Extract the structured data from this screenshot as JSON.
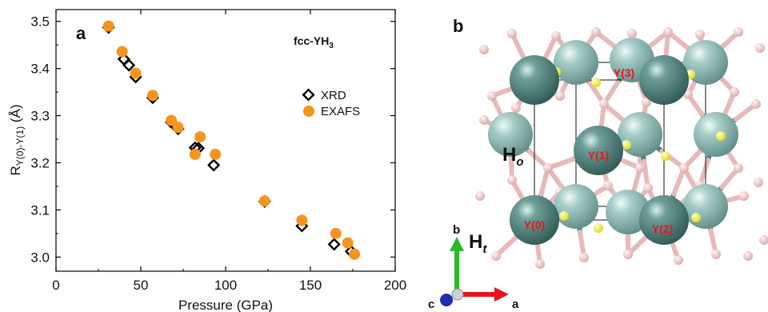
{
  "panels": {
    "a_label": "a",
    "b_label": "b"
  },
  "chart_data": {
    "type": "scatter",
    "title": "fcc-YH3",
    "title_main": "fcc-YH",
    "title_sub": "3",
    "xlabel": "Pressure (GPa)",
    "ylabel_main": "R",
    "ylabel_sub": "Y(0)-Y(1)",
    "ylabel_unit": " (Å)",
    "xlim": [
      0,
      200
    ],
    "ylim": [
      2.97,
      3.525
    ],
    "xticks": [
      0,
      50,
      100,
      150,
      200
    ],
    "xtick_labels": [
      "0",
      "50",
      "100",
      "150",
      "200"
    ],
    "yticks": [
      3.0,
      3.1,
      3.2,
      3.3,
      3.4,
      3.5
    ],
    "ytick_labels": [
      "3.0",
      "3.1",
      "3.2",
      "3.3",
      "3.4",
      "3.5"
    ],
    "grid": false,
    "legend_position": "right",
    "series": [
      {
        "name": "XRD",
        "marker": "open-diamond",
        "color": "#000000",
        "x": [
          31,
          40,
          43,
          47,
          57,
          68,
          72,
          82,
          84,
          93,
          123,
          145,
          164,
          174
        ],
        "y": [
          3.487,
          3.42,
          3.407,
          3.382,
          3.338,
          3.286,
          3.272,
          3.232,
          3.231,
          3.195,
          3.118,
          3.066,
          3.027,
          3.012
        ]
      },
      {
        "name": "EXAFS",
        "marker": "filled-circle",
        "color": "#f7941d",
        "x": [
          31,
          39,
          47,
          57,
          68,
          72,
          82,
          85,
          94,
          123,
          145,
          165,
          172,
          176
        ],
        "y": [
          3.49,
          3.436,
          3.39,
          3.343,
          3.29,
          3.275,
          3.218,
          3.255,
          3.218,
          3.119,
          3.078,
          3.05,
          3.03,
          3.006
        ]
      }
    ]
  },
  "structure": {
    "site_labels": [
      "Y(0)",
      "Y(1)",
      "Y(2)",
      "Y(3)"
    ],
    "h_octa_main": "H",
    "h_octa_sub": "o",
    "h_tetra_main": "H",
    "h_tetra_sub": "t",
    "axis_b": "b",
    "axis_a": "a",
    "axis_c": "c",
    "colors": {
      "yttrium": "#4d7e78",
      "hydrogen_pink": "#e8b9b9",
      "hydrogen_yellow": "#f2ee24",
      "site_label": "#e8141e",
      "axis_a": "#e8141e",
      "axis_b": "#2bb92b",
      "axis_c": "#1a2fb8"
    }
  }
}
